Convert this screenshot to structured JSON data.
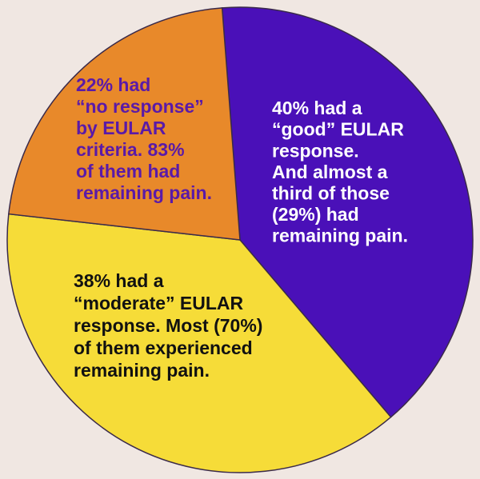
{
  "chart_data": {
    "type": "pie",
    "values": [
      40,
      38,
      22
    ],
    "colors": [
      "#4a10b8",
      "#f6dc38",
      "#e8892a"
    ],
    "annotations": [
      [
        "40% had a",
        "“good” EULAR",
        "response.",
        "And almost a",
        "third of those",
        "(29%) had",
        "remaining pain."
      ],
      [
        "38% had a",
        "“moderate” EULAR",
        "response. Most (70%)",
        "of them experienced",
        "remaining pain."
      ],
      [
        "22% had",
        "“no response”",
        "by EULAR",
        "criteria. 83%",
        "of them had",
        "remaining pain."
      ]
    ]
  }
}
